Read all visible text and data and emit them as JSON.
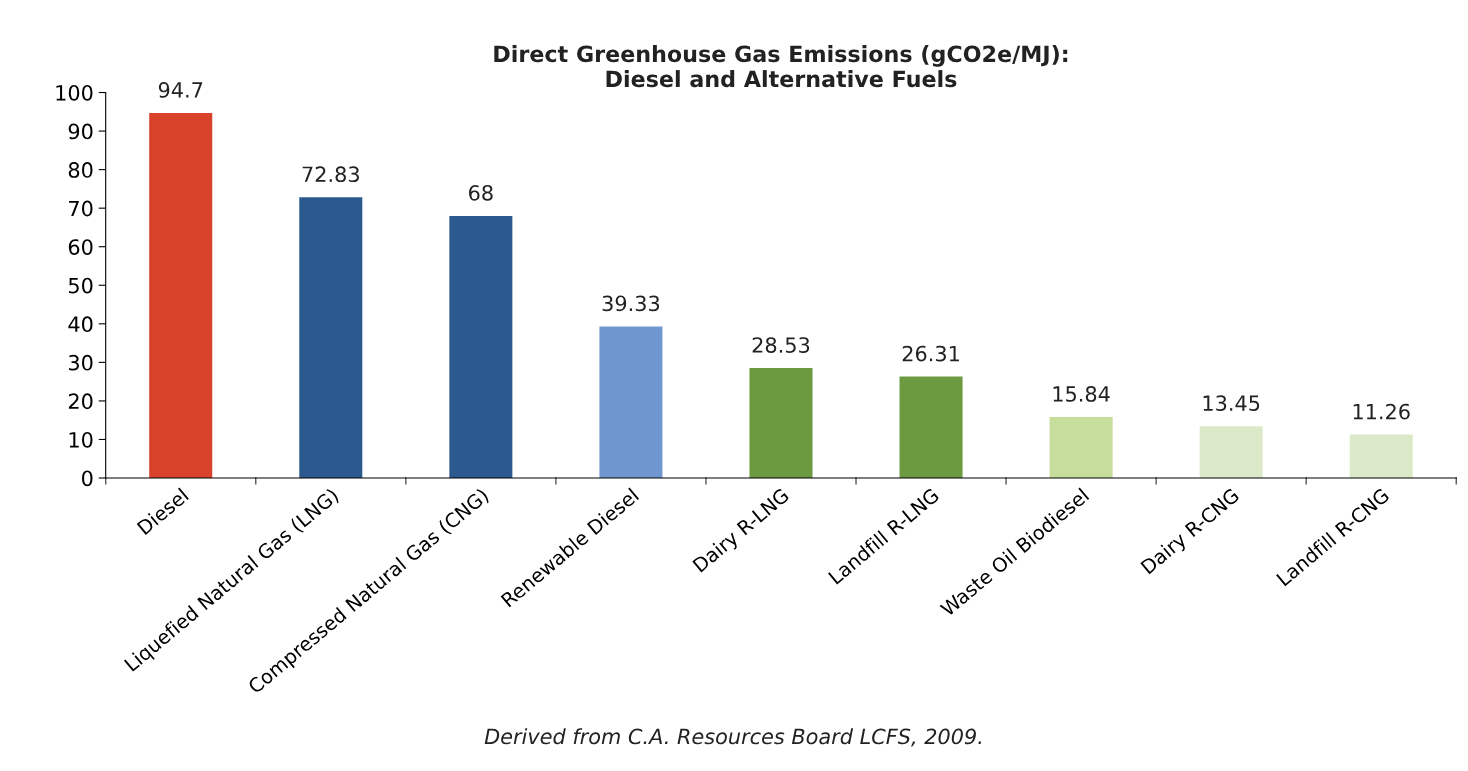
{
  "chart_data": {
    "type": "bar",
    "title": "Direct Greenhouse Gas Emissions (gCO2e/MJ):\nDiesel and Alternative Fuels",
    "categories": [
      "Diesel",
      "Liquefied Natural Gas (LNG)",
      "Compressed Natural Gas (CNG)",
      "Renewable Diesel",
      "Dairy R-LNG",
      "Landfill R-LNG",
      "Waste Oil Biodiesel",
      "Dairy R-CNG",
      "Landfill R-CNG"
    ],
    "values": [
      94.7,
      72.83,
      68,
      39.33,
      28.53,
      26.31,
      15.84,
      13.45,
      11.26
    ],
    "colors": [
      "#d8422a",
      "#2d5a8e",
      "#2d5a8e",
      "#7096d0",
      "#6b9a40",
      "#6b9a40",
      "#c6dd9c",
      "#dbe9c9",
      "#dbe9c9"
    ],
    "ylim": [
      0,
      100
    ],
    "yticks": [
      0,
      10,
      20,
      30,
      40,
      50,
      60,
      70,
      80,
      90,
      100
    ],
    "data_labels": true,
    "grid": false,
    "legend": false,
    "annotations": [
      "Derived from C.A. Resources Board LCFS, 2009."
    ]
  }
}
